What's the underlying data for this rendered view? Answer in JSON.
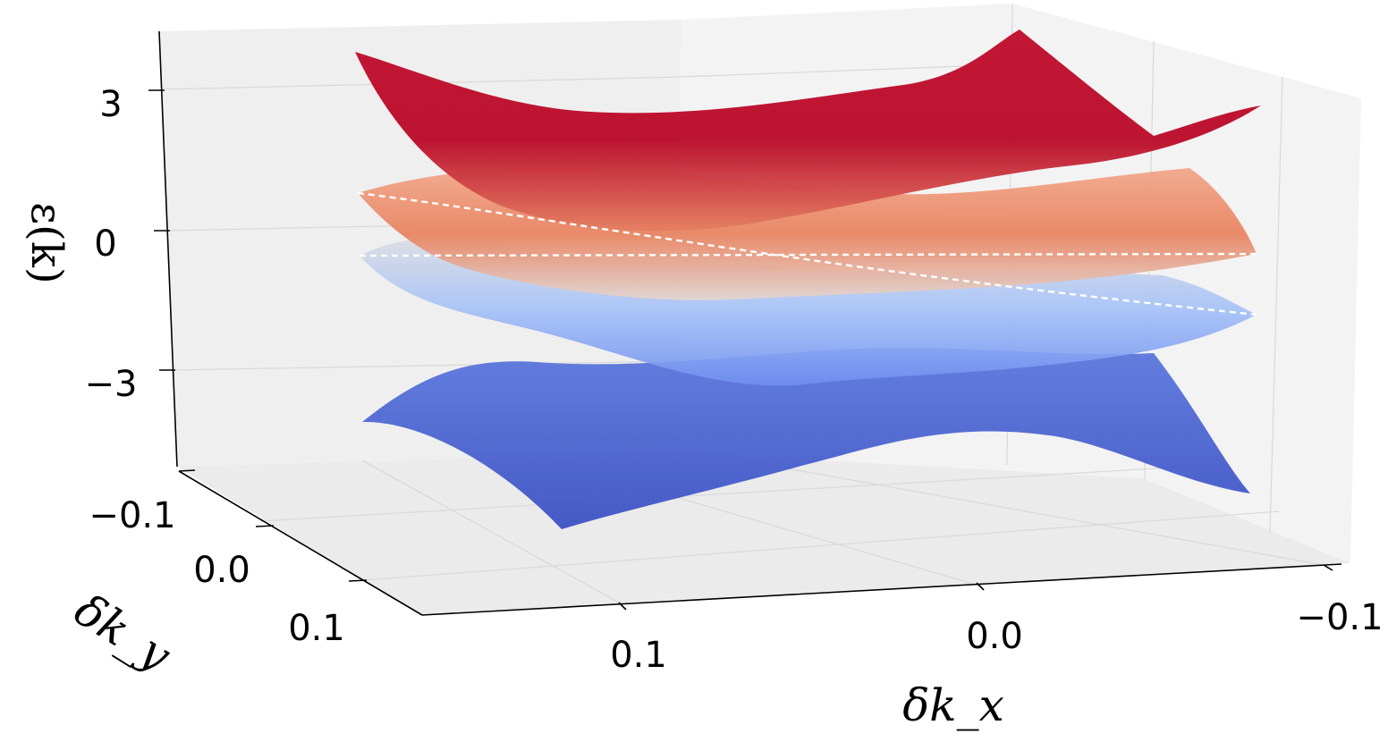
{
  "chart_data": {
    "type": "surface3d",
    "title": "",
    "colormap": "coolwarm",
    "colors": {
      "low": "#3b4cc0",
      "mid": "#dddddd",
      "high": "#b40426",
      "pane": "#f2f2f2",
      "grid": "#dcdcdc"
    },
    "x_axis": {
      "label": "δk_x",
      "range": [
        -0.15,
        0.15
      ],
      "ticks": [
        0.1,
        0.0,
        -0.1
      ],
      "tick_labels": [
        "0.1",
        "0.0",
        "−0.1"
      ]
    },
    "y_axis": {
      "label": "δk_y",
      "range": [
        -0.15,
        0.15
      ],
      "ticks": [
        -0.1,
        0.0,
        0.1
      ],
      "tick_labels": [
        "−0.1",
        "0.0",
        "0.1"
      ]
    },
    "z_axis": {
      "label": "ε(k)",
      "range": [
        -5,
        5
      ],
      "ticks": [
        3,
        0,
        -3
      ],
      "tick_labels": [
        "3",
        "0",
        "−3"
      ]
    },
    "grid": true,
    "series": [
      {
        "band": 1,
        "level": -4.0
      },
      {
        "band": 2,
        "level": -1.0
      },
      {
        "band": 3,
        "level": 1.0
      },
      {
        "band": 4,
        "level": 4.0
      }
    ]
  }
}
